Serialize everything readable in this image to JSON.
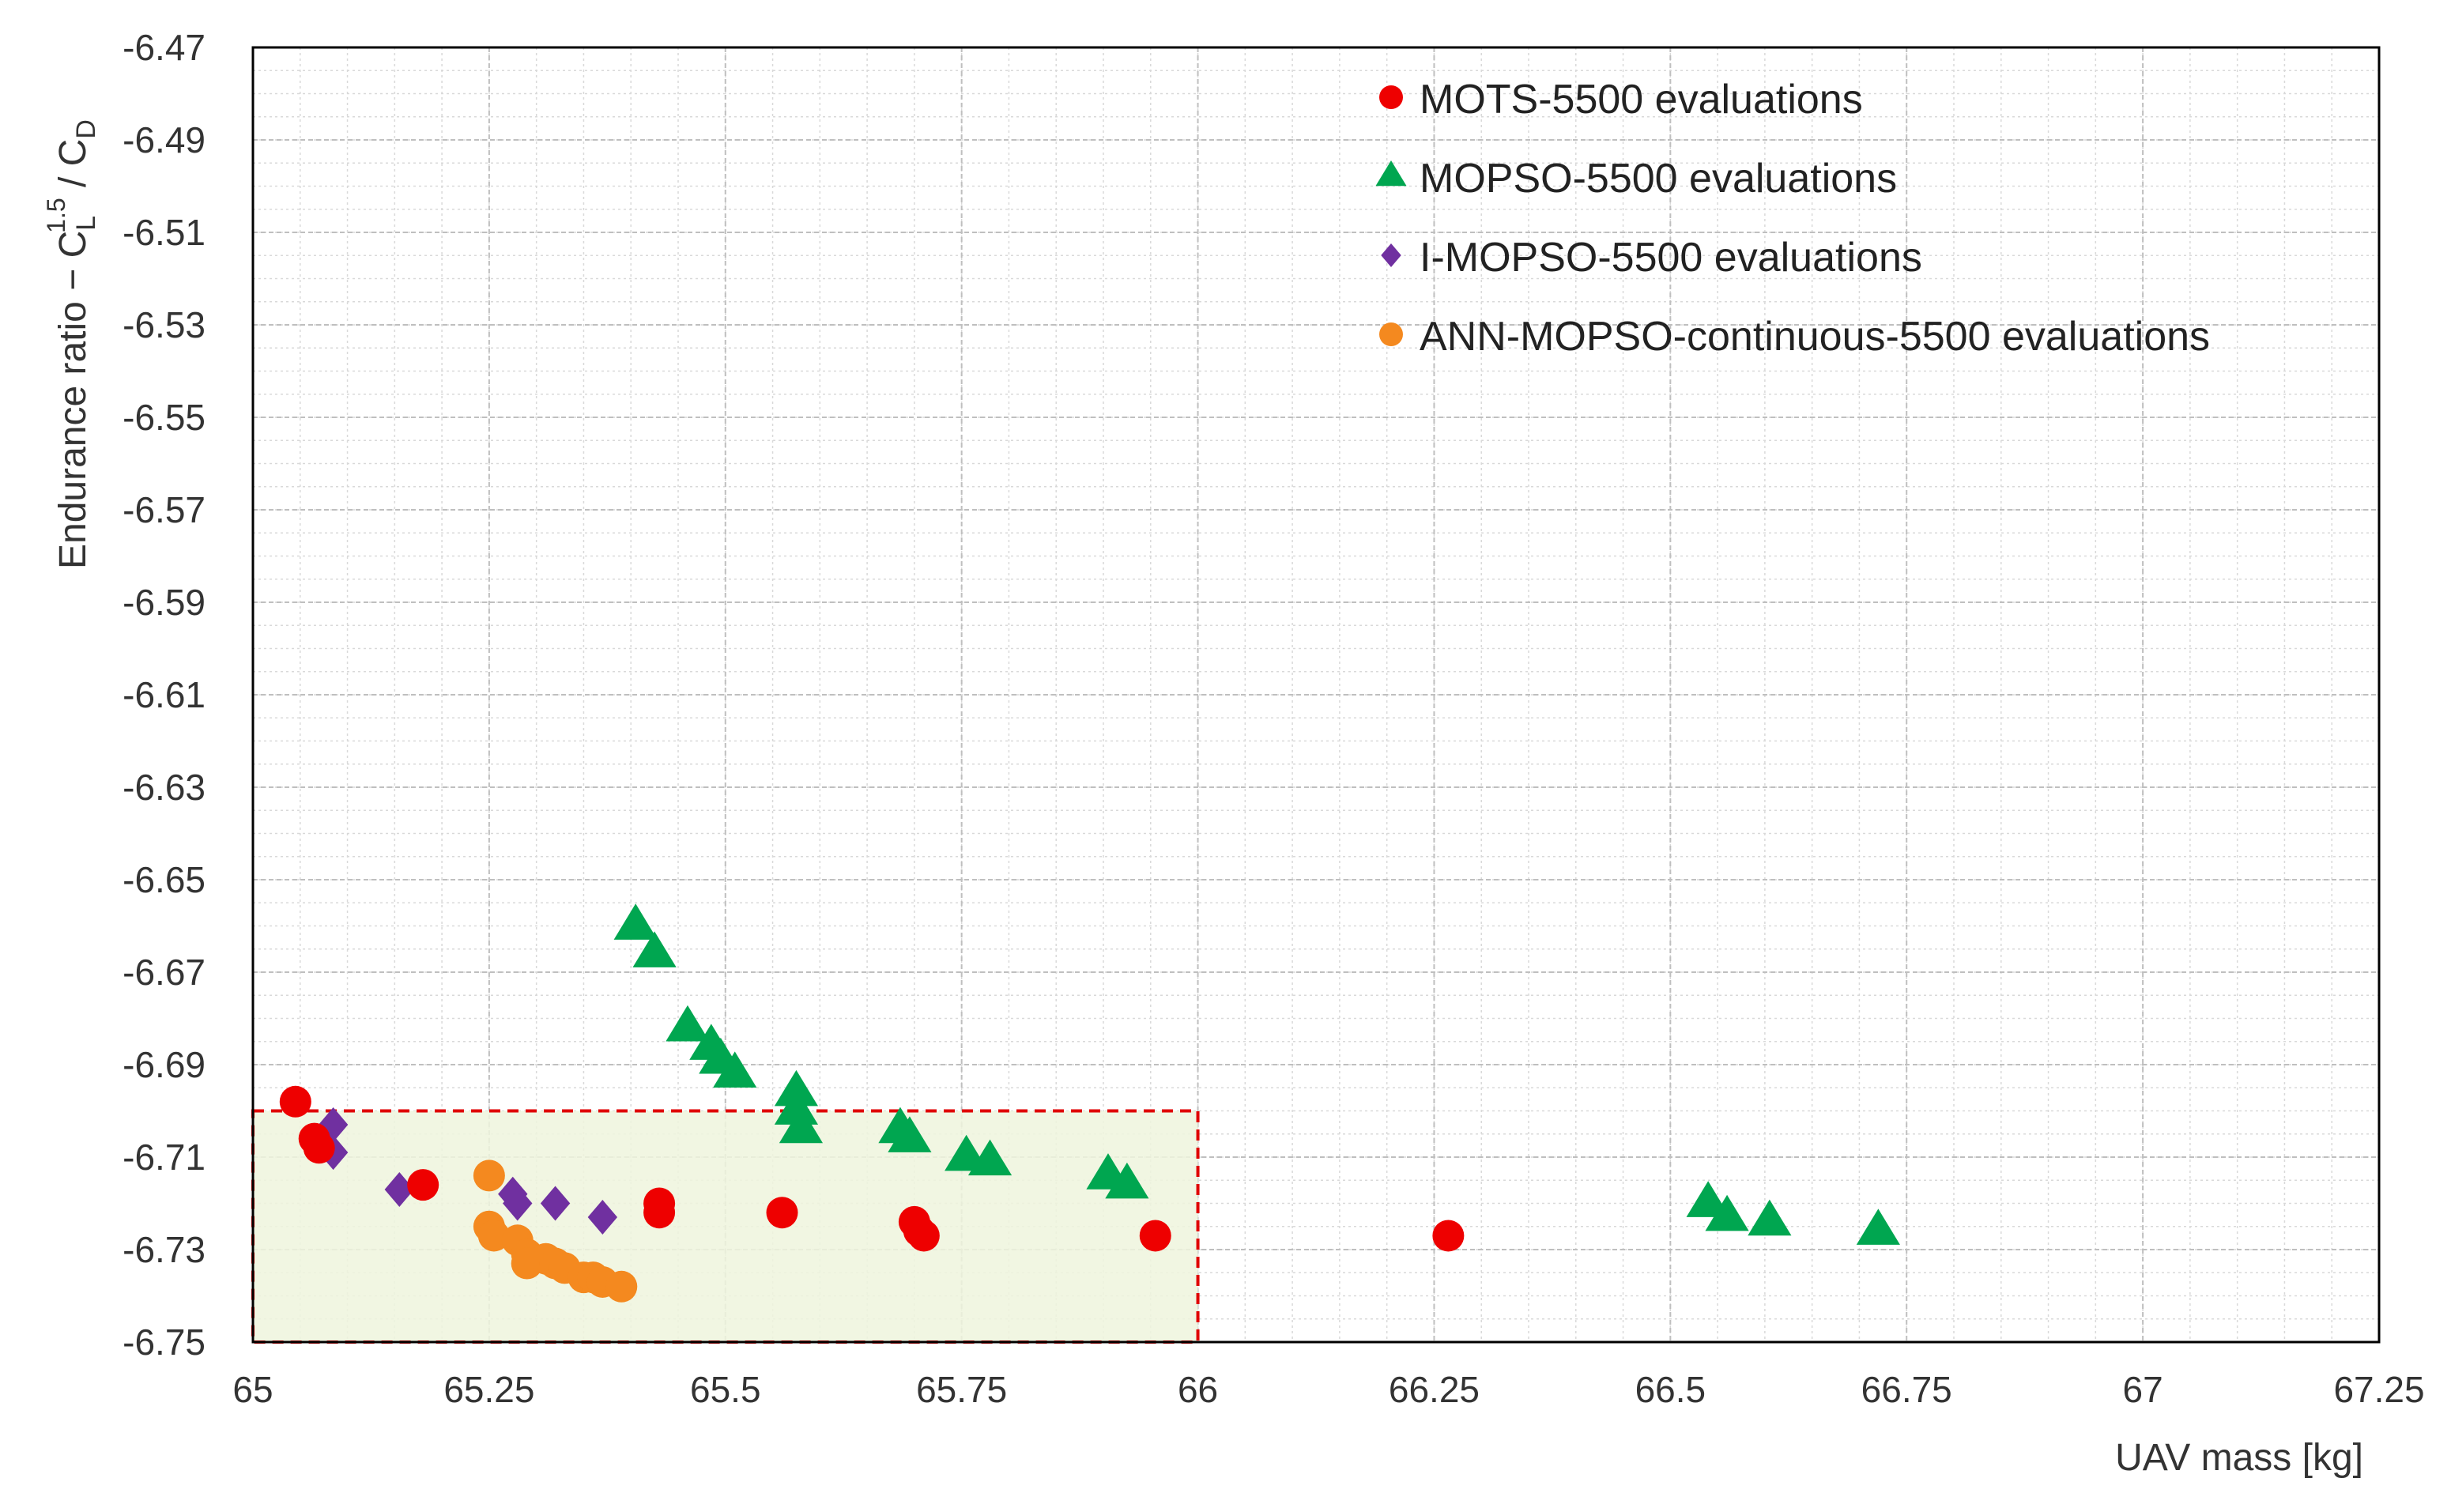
{
  "chart_data": {
    "type": "scatter",
    "xlabel": "UAV mass [kg]",
    "ylabel": "Endurance ratio  − C",
    "ylabel_math": {
      "sub1": "L",
      "sup1": "1.5",
      "slash": " / C",
      "sub2": "D"
    },
    "xlim": [
      65,
      67.25
    ],
    "ylim": [
      -6.75,
      -6.47
    ],
    "x_ticks": [
      "65",
      "65.25",
      "65.5",
      "65.75",
      "66",
      "66.25",
      "66.5",
      "66.75",
      "67",
      "67.25"
    ],
    "y_ticks": [
      "-6.47",
      "-6.49",
      "-6.51",
      "-6.53",
      "-6.55",
      "-6.57",
      "-6.59",
      "-6.61",
      "-6.63",
      "-6.65",
      "-6.67",
      "-6.69",
      "-6.71",
      "-6.73",
      "-6.75"
    ],
    "grid": true,
    "legend_position": "top-right",
    "highlight_region": {
      "x": [
        65,
        66
      ],
      "y": [
        -6.75,
        -6.7
      ],
      "fill": "#eef5dd",
      "border": "#e00000"
    },
    "series": [
      {
        "name": "MOTS-5500 evaluations",
        "marker": "circle",
        "color": "#ee0000",
        "points": [
          [
            65.045,
            -6.698
          ],
          [
            65.065,
            -6.706
          ],
          [
            65.07,
            -6.708
          ],
          [
            65.18,
            -6.716
          ],
          [
            65.43,
            -6.72
          ],
          [
            65.43,
            -6.722
          ],
          [
            65.56,
            -6.722
          ],
          [
            65.7,
            -6.724
          ],
          [
            65.705,
            -6.726
          ],
          [
            65.71,
            -6.727
          ],
          [
            65.955,
            -6.727
          ],
          [
            66.265,
            -6.727
          ]
        ]
      },
      {
        "name": "MOPSO-5500 evaluations",
        "marker": "triangle",
        "color": "#00a650",
        "points": [
          [
            65.405,
            -6.66
          ],
          [
            65.425,
            -6.666
          ],
          [
            65.46,
            -6.682
          ],
          [
            65.485,
            -6.686
          ],
          [
            65.495,
            -6.689
          ],
          [
            65.51,
            -6.692
          ],
          [
            65.575,
            -6.696
          ],
          [
            65.575,
            -6.7
          ],
          [
            65.58,
            -6.704
          ],
          [
            65.685,
            -6.704
          ],
          [
            65.695,
            -6.706
          ],
          [
            65.755,
            -6.71
          ],
          [
            65.78,
            -6.711
          ],
          [
            65.905,
            -6.714
          ],
          [
            65.925,
            -6.716
          ],
          [
            66.54,
            -6.72
          ],
          [
            66.56,
            -6.723
          ],
          [
            66.605,
            -6.724
          ],
          [
            66.72,
            -6.726
          ]
        ]
      },
      {
        "name": "I-MOPSO-5500 evaluations",
        "marker": "diamond",
        "color": "#7030a0",
        "points": [
          [
            65.085,
            -6.703
          ],
          [
            65.085,
            -6.709
          ],
          [
            65.155,
            -6.717
          ],
          [
            65.275,
            -6.718
          ],
          [
            65.28,
            -6.72
          ],
          [
            65.32,
            -6.72
          ],
          [
            65.37,
            -6.723
          ]
        ]
      },
      {
        "name": "ANN-MOPSO-continuous-5500 evaluations",
        "marker": "circle",
        "color": "#f4891f",
        "points": [
          [
            65.25,
            -6.714
          ],
          [
            65.25,
            -6.725
          ],
          [
            65.255,
            -6.727
          ],
          [
            65.28,
            -6.728
          ],
          [
            65.29,
            -6.731
          ],
          [
            65.29,
            -6.733
          ],
          [
            65.31,
            -6.732
          ],
          [
            65.32,
            -6.733
          ],
          [
            65.33,
            -6.734
          ],
          [
            65.35,
            -6.736
          ],
          [
            65.36,
            -6.736
          ],
          [
            65.37,
            -6.737
          ],
          [
            65.39,
            -6.738
          ]
        ]
      }
    ]
  }
}
